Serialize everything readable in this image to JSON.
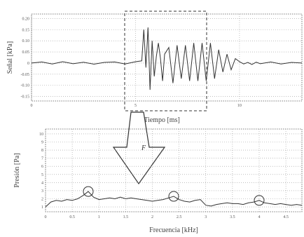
{
  "chart_data": [
    {
      "type": "line",
      "name": "time-signal",
      "xlabel": "Tiempo [ms]",
      "ylabel": "Señal [kPa]",
      "x_ticks": [
        "0",
        "5",
        "10"
      ],
      "y_ticks": [
        "0.20",
        "0.15",
        "0.10",
        "0.05",
        "0",
        "-0.05",
        "-0.10",
        "-0.15"
      ],
      "xlim": [
        0,
        13
      ],
      "ylim": [
        -0.17,
        0.22
      ],
      "grid": true,
      "series": [
        {
          "x": [
            0,
            0.5,
            1,
            1.5,
            2,
            2.5,
            3,
            3.5,
            4,
            4.5,
            5,
            5.3,
            5.4,
            5.5,
            5.6,
            5.7,
            5.8,
            5.9,
            6.0,
            6.1,
            6.2,
            6.3,
            6.4,
            6.6,
            6.8,
            7.0,
            7.2,
            7.4,
            7.6,
            7.8,
            8.0,
            8.2,
            8.4,
            8.6,
            8.8,
            9.0,
            9.2,
            9.4,
            9.6,
            9.8,
            10.0,
            10.2,
            10.4,
            10.6,
            10.8,
            11.0,
            11.5,
            12,
            12.5,
            13
          ],
          "y": [
            0,
            0.005,
            -0.004,
            0.006,
            -0.003,
            0.004,
            -0.005,
            0.003,
            0.005,
            -0.004,
            0.006,
            0.01,
            0.15,
            -0.02,
            0.16,
            -0.12,
            0.1,
            -0.06,
            0.03,
            0.09,
            0.02,
            -0.08,
            0.04,
            0.07,
            -0.09,
            0.08,
            -0.07,
            0.08,
            -0.08,
            0.09,
            -0.08,
            0.09,
            -0.08,
            0.09,
            -0.07,
            0.06,
            -0.04,
            0.04,
            -0.03,
            0.02,
            0.006,
            -0.004,
            0.003,
            -0.006,
            0.004,
            -0.003,
            0.005,
            -0.004,
            0.003,
            0
          ]
        }
      ]
    },
    {
      "type": "line",
      "name": "frequency-spectrum",
      "xlabel": "Frecuencia [kHz]",
      "ylabel": "Presión [Pa]",
      "x_ticks": [
        "0",
        "0.5",
        "1",
        "1.5",
        "2",
        "2.5",
        "3",
        "3.5",
        "4",
        "4.5"
      ],
      "y_ticks": [
        "10",
        "9",
        "8",
        "7",
        "6",
        "5",
        "4",
        "3",
        "2",
        "1"
      ],
      "xlim": [
        0,
        4.8
      ],
      "ylim": [
        0.4,
        10.6
      ],
      "grid": true,
      "series": [
        {
          "x": [
            0,
            0.1,
            0.2,
            0.3,
            0.4,
            0.5,
            0.6,
            0.7,
            0.8,
            0.9,
            1.0,
            1.1,
            1.2,
            1.3,
            1.4,
            1.5,
            1.6,
            1.7,
            1.8,
            1.9,
            2.0,
            2.1,
            2.2,
            2.3,
            2.4,
            2.5,
            2.6,
            2.7,
            2.8,
            2.9,
            3.0,
            3.1,
            3.2,
            3.3,
            3.4,
            3.5,
            3.6,
            3.7,
            3.8,
            3.9,
            4.0,
            4.1,
            4.2,
            4.3,
            4.4,
            4.5,
            4.6,
            4.7,
            4.8
          ],
          "y": [
            1.0,
            1.6,
            1.8,
            1.7,
            1.9,
            1.8,
            2.0,
            2.4,
            2.9,
            2.2,
            1.9,
            2.0,
            2.1,
            2.0,
            2.2,
            2.0,
            2.1,
            2.0,
            1.9,
            1.8,
            1.7,
            1.8,
            1.9,
            2.1,
            2.3,
            1.9,
            1.7,
            1.6,
            1.8,
            1.9,
            1.2,
            1.1,
            1.3,
            1.4,
            1.5,
            1.4,
            1.4,
            1.3,
            1.5,
            1.6,
            1.8,
            1.5,
            1.4,
            1.3,
            1.4,
            1.3,
            1.2,
            1.3,
            1.2
          ]
        }
      ],
      "peaks_x": [
        0.8,
        2.4,
        4.0
      ],
      "annotation": "F"
    }
  ]
}
